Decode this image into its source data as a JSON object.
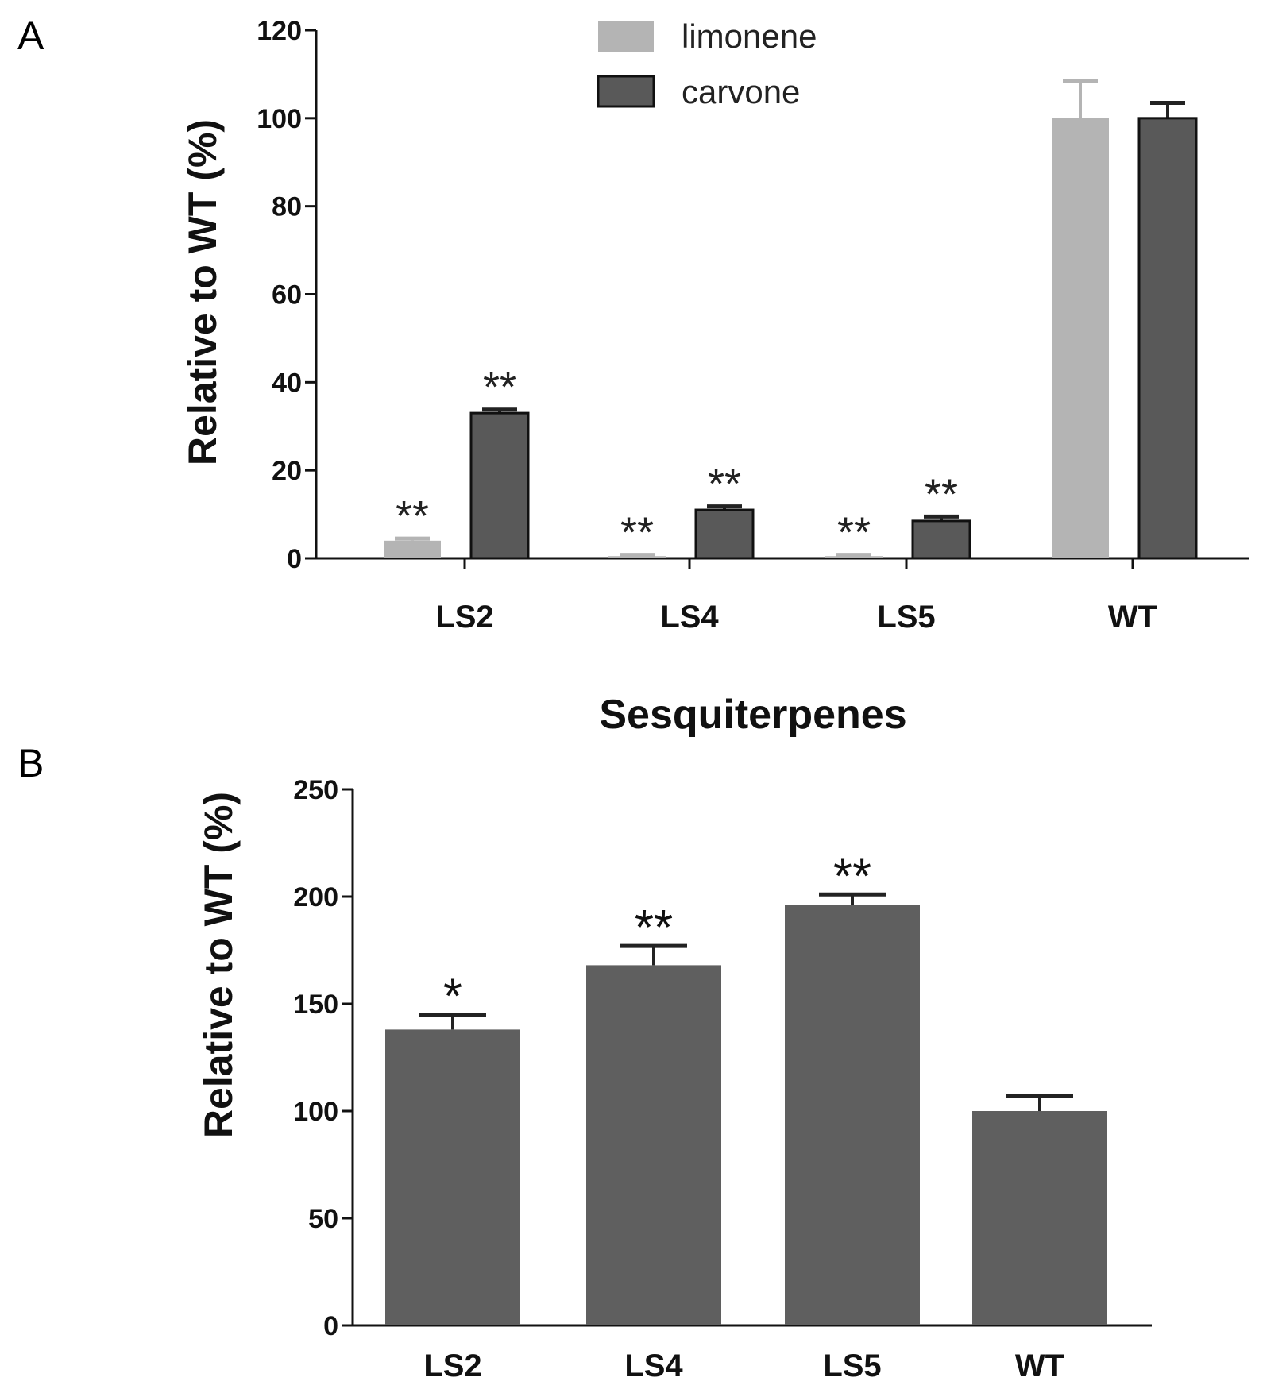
{
  "panel_labels": {
    "a": "A",
    "b": "B"
  },
  "colors": {
    "limonene": "#b4b4b4",
    "carvone": "#595959",
    "sesquiterpenes": "#5f5f5f",
    "axis": "#111111",
    "error_bar": "#222222"
  },
  "chart_data": [
    {
      "type": "bar",
      "title": "",
      "categories": [
        "LS2",
        "LS4",
        "LS5",
        "WT"
      ],
      "ylabel": "Relative to WT (%)",
      "xlabel": "",
      "ylim": [
        0,
        120
      ],
      "yticks": [
        "0",
        "20",
        "40",
        "60",
        "80",
        "100",
        "120"
      ],
      "legend": {
        "position": "top-center",
        "entries": [
          "limonene",
          "carvone"
        ]
      },
      "series": [
        {
          "name": "limonene",
          "values": [
            4,
            0.5,
            0.5,
            100
          ],
          "errors": [
            0.5,
            0.3,
            0.3,
            8.5
          ],
          "significance": [
            "**",
            "**",
            "**",
            ""
          ]
        },
        {
          "name": "carvone",
          "values": [
            33,
            11,
            8.5,
            100
          ],
          "errors": [
            0.8,
            0.8,
            1.0,
            3.5
          ],
          "significance": [
            "**",
            "**",
            "**",
            ""
          ]
        }
      ]
    },
    {
      "type": "bar",
      "title": "Sesquiterpenes",
      "categories": [
        "LS2",
        "LS4",
        "LS5",
        "WT"
      ],
      "ylabel": "Relative to WT (%)",
      "xlabel": "",
      "ylim": [
        0,
        250
      ],
      "yticks": [
        "0",
        "50",
        "100",
        "150",
        "200",
        "250"
      ],
      "series": [
        {
          "name": "Sesquiterpenes",
          "values": [
            138,
            168,
            196,
            100
          ],
          "errors": [
            7,
            9,
            5,
            7
          ],
          "significance": [
            "*",
            "**",
            "**",
            ""
          ]
        }
      ]
    }
  ]
}
